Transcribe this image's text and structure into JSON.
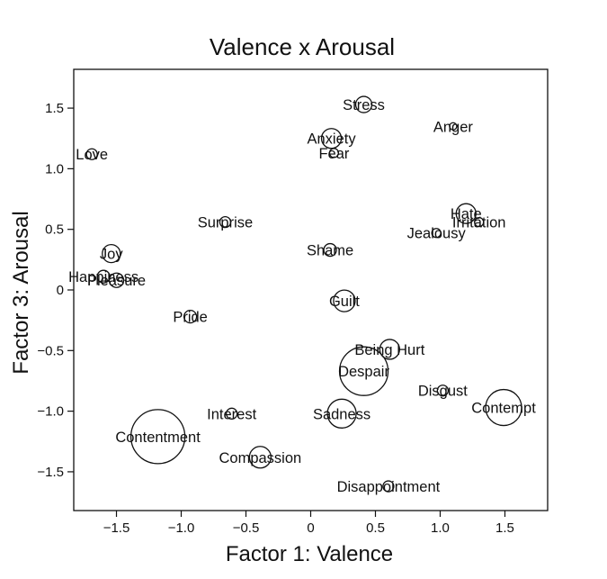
{
  "chart_data": {
    "type": "scatter",
    "title": "Valence x Arousal",
    "xlabel": "Factor 1: Valence",
    "ylabel": "Factor 3: Arousal",
    "xlim": [
      -1.83,
      1.83
    ],
    "ylim": [
      -1.82,
      1.82
    ],
    "xticks": [
      -1.5,
      -1.0,
      -0.5,
      0,
      0.5,
      1.0,
      1.5
    ],
    "xtick_labels": [
      "−1.5",
      "−1.0",
      "−0.5",
      "0",
      "0.5",
      "1.0",
      "1.5"
    ],
    "yticks": [
      1.5,
      1.0,
      0.5,
      0,
      -0.5,
      -1.0,
      -1.5
    ],
    "ytick_labels": [
      "1.5",
      "1.0",
      "0.5",
      "0",
      "−0.5",
      "−1.0",
      "−1.5"
    ],
    "grid": false,
    "legend": "none",
    "points": [
      {
        "label": "Stress",
        "x": 0.41,
        "y": 1.53,
        "size": 9
      },
      {
        "label": "Anger",
        "x": 1.1,
        "y": 1.35,
        "size": 4
      },
      {
        "label": "Anxiety",
        "x": 0.16,
        "y": 1.25,
        "size": 11
      },
      {
        "label": "Fear",
        "x": 0.18,
        "y": 1.13,
        "size": 5
      },
      {
        "label": "Love",
        "x": -1.69,
        "y": 1.12,
        "size": 6
      },
      {
        "label": "Hate",
        "x": 1.2,
        "y": 0.63,
        "size": 11
      },
      {
        "label": "Irritation",
        "x": 1.3,
        "y": 0.56,
        "size": 5
      },
      {
        "label": "Surprise",
        "x": -0.66,
        "y": 0.56,
        "size": 6
      },
      {
        "label": "Jealousy",
        "x": 0.97,
        "y": 0.47,
        "size": 5
      },
      {
        "label": "Shame",
        "x": 0.15,
        "y": 0.33,
        "size": 7
      },
      {
        "label": "Joy",
        "x": -1.54,
        "y": 0.3,
        "size": 10
      },
      {
        "label": "Happiness",
        "x": -1.6,
        "y": 0.11,
        "size": 7
      },
      {
        "label": "Pleasure",
        "x": -1.5,
        "y": 0.08,
        "size": 8
      },
      {
        "label": "Guilt",
        "x": 0.26,
        "y": -0.09,
        "size": 12
      },
      {
        "label": "Pride",
        "x": -0.93,
        "y": -0.22,
        "size": 7
      },
      {
        "label": "Being Hurt",
        "x": 0.61,
        "y": -0.49,
        "size": 11
      },
      {
        "label": "Despair",
        "x": 0.41,
        "y": -0.67,
        "size": 27
      },
      {
        "label": "Disgust",
        "x": 1.02,
        "y": -0.83,
        "size": 6
      },
      {
        "label": "Contempt",
        "x": 1.49,
        "y": -0.97,
        "size": 20
      },
      {
        "label": "Sadness",
        "x": 0.24,
        "y": -1.02,
        "size": 16
      },
      {
        "label": "Interest",
        "x": -0.61,
        "y": -1.02,
        "size": 6
      },
      {
        "label": "Contentment",
        "x": -1.18,
        "y": -1.21,
        "size": 30
      },
      {
        "label": "Compassion",
        "x": -0.39,
        "y": -1.38,
        "size": 12
      },
      {
        "label": "Disappointment",
        "x": 0.6,
        "y": -1.62,
        "size": 6
      }
    ]
  }
}
